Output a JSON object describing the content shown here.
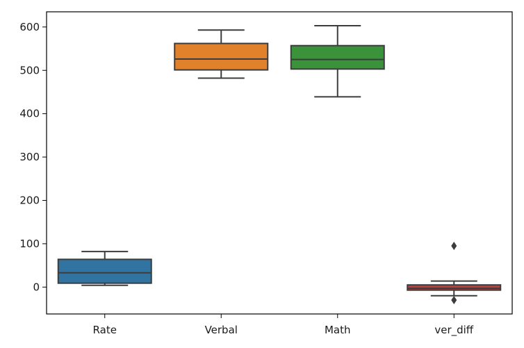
{
  "chart_data": {
    "type": "box",
    "title": "",
    "xlabel": "",
    "ylabel": "",
    "ylim": [
      -62,
      635
    ],
    "yticks": [
      0,
      100,
      200,
      300,
      400,
      500,
      600
    ],
    "categories": [
      "Rate",
      "Verbal",
      "Math",
      "ver_diff"
    ],
    "colors": [
      "#3274a1",
      "#e1812c",
      "#3a923a",
      "#c03d3e"
    ],
    "grid": false,
    "legend": "none",
    "boxes": [
      {
        "name": "Rate",
        "whisker_low": 4,
        "q1": 9,
        "median": 33,
        "q3": 64,
        "whisker_high": 82,
        "outliers": []
      },
      {
        "name": "Verbal",
        "whisker_low": 482,
        "q1": 501,
        "median": 526,
        "q3": 562,
        "whisker_high": 593,
        "outliers": []
      },
      {
        "name": "Math",
        "whisker_low": 439,
        "q1": 503,
        "median": 525,
        "q3": 557,
        "whisker_high": 603,
        "outliers": []
      },
      {
        "name": "ver_diff",
        "whisker_low": -20,
        "q1": -7,
        "median": -3,
        "q3": 5,
        "whisker_high": 14,
        "outliers": [
          95,
          -30
        ]
      }
    ]
  }
}
